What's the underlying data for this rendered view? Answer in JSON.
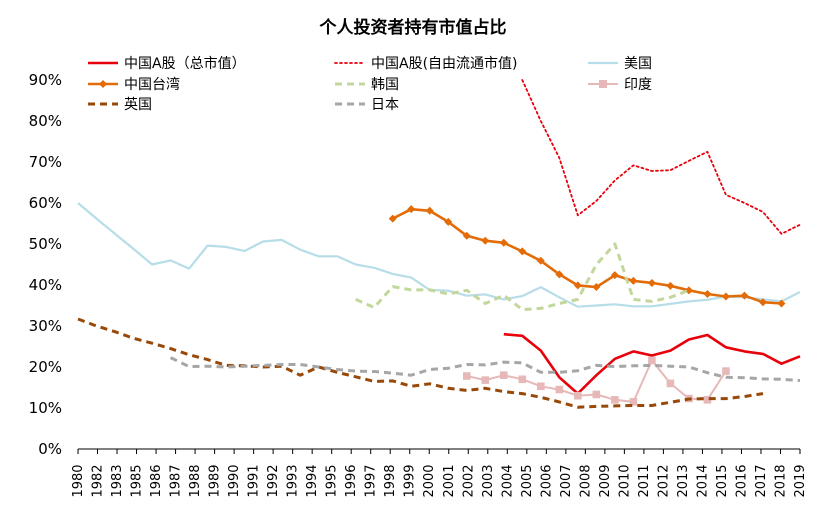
{
  "chart_data": {
    "type": "line",
    "title": "个人投资者持有市值占比",
    "xlabel": "",
    "ylabel": "",
    "ylim": [
      0,
      90
    ],
    "y_ticks": [
      "0%",
      "10%",
      "20%",
      "30%",
      "40%",
      "50%",
      "60%",
      "70%",
      "80%",
      "90%"
    ],
    "x_ticks": [
      "1980",
      "1982",
      "1983",
      "1985",
      "1986",
      "1987",
      "1988",
      "1989",
      "1990",
      "1991",
      "1992",
      "1993",
      "1994",
      "1995",
      "1996",
      "1997",
      "1998",
      "1999",
      "2000",
      "2001",
      "2002",
      "2003",
      "2004",
      "2005",
      "2006",
      "2007",
      "2008",
      "2009",
      "2010",
      "2011",
      "2012",
      "2013",
      "2014",
      "2015",
      "2016",
      "2017",
      "2018",
      "2019"
    ],
    "grid": false,
    "legend_position": "top",
    "series": [
      {
        "name": "中国A股（总市值）",
        "color": "#e8000b",
        "style": "solid-thick",
        "points": [
          [
            2003,
            28.0
          ],
          [
            2004,
            27.6
          ],
          [
            2005,
            24.0
          ],
          [
            2006,
            17.5
          ],
          [
            2007,
            13.5
          ],
          [
            2008,
            18.0
          ],
          [
            2009,
            22.0
          ],
          [
            2010,
            23.8
          ],
          [
            2011,
            22.8
          ],
          [
            2012,
            24.0
          ],
          [
            2013,
            26.7
          ],
          [
            2014,
            27.8
          ],
          [
            2015,
            24.8
          ],
          [
            2016,
            23.8
          ],
          [
            2017,
            23.2
          ],
          [
            2018,
            20.8
          ],
          [
            2019,
            22.6
          ]
        ]
      },
      {
        "name": "中国A股(自由流通市值)",
        "color": "#e8000b",
        "style": "dotted",
        "points": [
          [
            2004,
            90.0
          ],
          [
            2005,
            80.0
          ],
          [
            2006,
            71.0
          ],
          [
            2007,
            57.0
          ],
          [
            2008,
            60.5
          ],
          [
            2009,
            65.5
          ],
          [
            2010,
            69.2
          ],
          [
            2011,
            67.8
          ],
          [
            2012,
            68.0
          ],
          [
            2013,
            70.3
          ],
          [
            2014,
            72.5
          ],
          [
            2015,
            62.0
          ],
          [
            2016,
            60.0
          ],
          [
            2017,
            57.8
          ],
          [
            2018,
            52.5
          ],
          [
            2019,
            54.7
          ]
        ]
      },
      {
        "name": "美国",
        "color": "#b7dde8",
        "style": "solid",
        "points": [
          [
            1980,
            60.0
          ],
          [
            1981,
            56.2
          ],
          [
            1982,
            52.5
          ],
          [
            1983,
            48.8
          ],
          [
            1984,
            45.0
          ],
          [
            1985,
            46.0
          ],
          [
            1986,
            44.0
          ],
          [
            1987,
            49.6
          ],
          [
            1988,
            49.3
          ],
          [
            1989,
            48.3
          ],
          [
            1990,
            50.6
          ],
          [
            1991,
            51.0
          ],
          [
            1992,
            48.6
          ],
          [
            1993,
            47.0
          ],
          [
            1994,
            47.0
          ],
          [
            1995,
            45.0
          ],
          [
            1996,
            44.2
          ],
          [
            1997,
            42.7
          ],
          [
            1998,
            41.8
          ],
          [
            1999,
            38.8
          ],
          [
            2000,
            38.6
          ],
          [
            2001,
            37.4
          ],
          [
            2002,
            37.7
          ],
          [
            2003,
            36.5
          ],
          [
            2004,
            37.3
          ],
          [
            2005,
            39.5
          ],
          [
            2006,
            37.0
          ],
          [
            2007,
            34.7
          ],
          [
            2008,
            35.0
          ],
          [
            2009,
            35.3
          ],
          [
            2010,
            34.8
          ],
          [
            2011,
            34.8
          ],
          [
            2012,
            35.4
          ],
          [
            2013,
            36.0
          ],
          [
            2014,
            36.4
          ],
          [
            2015,
            37.2
          ],
          [
            2016,
            37.0
          ],
          [
            2017,
            36.5
          ],
          [
            2018,
            36.0
          ],
          [
            2019,
            38.3
          ]
        ]
      },
      {
        "name": "中国台湾",
        "color": "#e36c09",
        "style": "solid-diamond",
        "points": [
          [
            1997,
            56.2
          ],
          [
            1998,
            58.5
          ],
          [
            1999,
            58.1
          ],
          [
            2000,
            55.4
          ],
          [
            2001,
            52.0
          ],
          [
            2002,
            50.8
          ],
          [
            2003,
            50.3
          ],
          [
            2004,
            48.2
          ],
          [
            2005,
            45.9
          ],
          [
            2006,
            42.6
          ],
          [
            2007,
            39.9
          ],
          [
            2008,
            39.5
          ],
          [
            2009,
            42.4
          ],
          [
            2010,
            41.0
          ],
          [
            2011,
            40.5
          ],
          [
            2012,
            39.8
          ],
          [
            2013,
            38.7
          ],
          [
            2014,
            37.8
          ],
          [
            2015,
            37.2
          ],
          [
            2016,
            37.4
          ],
          [
            2017,
            35.8
          ],
          [
            2018,
            35.5
          ]
        ]
      },
      {
        "name": "韩国",
        "color": "#c3d69b",
        "style": "dashed-thick",
        "points": [
          [
            1995,
            36.5
          ],
          [
            1996,
            34.5
          ],
          [
            1997,
            39.6
          ],
          [
            1998,
            38.8
          ],
          [
            1999,
            38.8
          ],
          [
            2000,
            37.8
          ],
          [
            2001,
            38.7
          ],
          [
            2002,
            35.5
          ],
          [
            2003,
            37.5
          ],
          [
            2004,
            34.0
          ],
          [
            2005,
            34.3
          ],
          [
            2006,
            35.5
          ],
          [
            2007,
            36.5
          ],
          [
            2008,
            45.0
          ],
          [
            2009,
            50.0
          ],
          [
            2010,
            36.5
          ],
          [
            2011,
            36.0
          ],
          [
            2012,
            37.0
          ],
          [
            2013,
            38.7
          ]
        ]
      },
      {
        "name": "印度",
        "color": "#e6b9b8",
        "style": "solid-square",
        "points": [
          [
            2001,
            17.8
          ],
          [
            2002,
            16.8
          ],
          [
            2003,
            18.0
          ],
          [
            2004,
            17.0
          ],
          [
            2005,
            15.3
          ],
          [
            2006,
            14.5
          ],
          [
            2007,
            13.0
          ],
          [
            2008,
            13.3
          ],
          [
            2009,
            12.0
          ],
          [
            2010,
            11.5
          ],
          [
            2011,
            21.6
          ],
          [
            2012,
            16.0
          ],
          [
            2013,
            12.3
          ],
          [
            2014,
            12.0
          ],
          [
            2015,
            19.0
          ]
        ]
      },
      {
        "name": "英国",
        "color": "#984807",
        "style": "dashed-thick",
        "points": [
          [
            1980,
            31.7
          ],
          [
            1981,
            30.0
          ],
          [
            1982,
            28.6
          ],
          [
            1983,
            27.0
          ],
          [
            1984,
            25.8
          ],
          [
            1985,
            24.5
          ],
          [
            1986,
            23.0
          ],
          [
            1987,
            21.8
          ],
          [
            1988,
            20.4
          ],
          [
            1989,
            20.3
          ],
          [
            1990,
            20.0
          ],
          [
            1991,
            20.2
          ],
          [
            1992,
            18.0
          ],
          [
            1993,
            20.0
          ],
          [
            1994,
            18.7
          ],
          [
            1995,
            17.6
          ],
          [
            1996,
            16.5
          ],
          [
            1997,
            16.6
          ],
          [
            1998,
            15.3
          ],
          [
            1999,
            15.9
          ],
          [
            2000,
            14.8
          ],
          [
            2001,
            14.3
          ],
          [
            2002,
            14.8
          ],
          [
            2003,
            14.0
          ],
          [
            2004,
            13.5
          ],
          [
            2005,
            12.6
          ],
          [
            2006,
            11.5
          ],
          [
            2007,
            10.2
          ],
          [
            2008,
            10.4
          ],
          [
            2009,
            10.5
          ],
          [
            2010,
            10.6
          ],
          [
            2011,
            10.6
          ],
          [
            2012,
            11.4
          ],
          [
            2013,
            12.2
          ],
          [
            2014,
            12.3
          ],
          [
            2015,
            12.3
          ],
          [
            2016,
            12.8
          ],
          [
            2017,
            13.5
          ]
        ]
      },
      {
        "name": "日本",
        "color": "#a6a6a6",
        "style": "dashed-thick",
        "points": [
          [
            1985,
            22.3
          ],
          [
            1986,
            20.1
          ],
          [
            1987,
            20.2
          ],
          [
            1988,
            20.0
          ],
          [
            1989,
            20.2
          ],
          [
            1990,
            20.4
          ],
          [
            1991,
            20.6
          ],
          [
            1992,
            20.6
          ],
          [
            1993,
            20.0
          ],
          [
            1994,
            19.4
          ],
          [
            1995,
            19.0
          ],
          [
            1996,
            18.9
          ],
          [
            1997,
            18.5
          ],
          [
            1998,
            18.0
          ],
          [
            1999,
            19.4
          ],
          [
            2000,
            19.7
          ],
          [
            2001,
            20.6
          ],
          [
            2002,
            20.5
          ],
          [
            2003,
            21.2
          ],
          [
            2004,
            21.0
          ],
          [
            2005,
            18.7
          ],
          [
            2006,
            18.7
          ],
          [
            2007,
            19.1
          ],
          [
            2008,
            20.4
          ],
          [
            2009,
            20.1
          ],
          [
            2010,
            20.3
          ],
          [
            2011,
            20.4
          ],
          [
            2012,
            20.2
          ],
          [
            2013,
            20.0
          ],
          [
            2014,
            18.6
          ],
          [
            2015,
            17.5
          ],
          [
            2016,
            17.4
          ],
          [
            2017,
            17.1
          ],
          [
            2018,
            17.0
          ],
          [
            2019,
            16.7
          ]
        ]
      }
    ]
  }
}
